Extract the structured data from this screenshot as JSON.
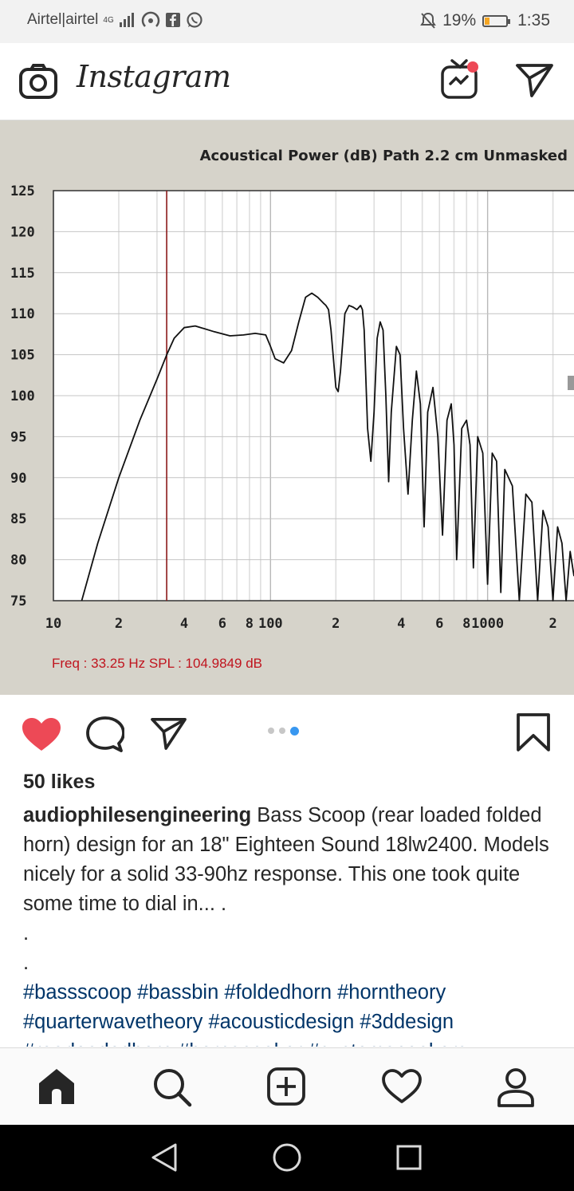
{
  "status": {
    "carrier": "Airtel|airtel",
    "network": "4G",
    "battery": "19%",
    "time": "1:35"
  },
  "header": {
    "app_name": "Instagram"
  },
  "chart_data": {
    "type": "line",
    "title": "Acoustical Power (dB)   Path 2.2 cm   Unmasked",
    "x_scale": "log",
    "xlim": [
      10,
      2500
    ],
    "ylim": [
      75,
      125
    ],
    "yticks": [
      125,
      120,
      115,
      110,
      105,
      100,
      95,
      90,
      85,
      80,
      75
    ],
    "xtick_labels": [
      "10",
      "2",
      "4",
      "6",
      "8",
      "100",
      "2",
      "4",
      "6",
      "8",
      "1000",
      "2"
    ],
    "xtick_values": [
      10,
      20,
      40,
      60,
      80,
      100,
      200,
      400,
      600,
      800,
      1000,
      2000
    ],
    "marker_x": 33.25,
    "readout": "Freq : 33.25 Hz     SPL : 104.9849 dB",
    "grid": true,
    "series": [
      {
        "x": [
          13.5,
          16,
          20,
          25,
          30,
          33.25,
          36,
          40,
          45,
          55,
          65,
          75,
          85,
          95,
          100,
          105,
          115,
          125,
          135,
          145,
          155,
          165,
          175,
          180,
          185,
          190,
          200,
          205,
          210,
          220,
          230,
          240,
          250,
          260,
          265,
          270,
          280,
          290,
          300,
          310,
          320,
          330,
          340,
          350,
          360,
          380,
          395,
          410,
          430,
          450,
          470,
          490,
          510,
          530,
          560,
          590,
          620,
          650,
          680,
          700,
          720,
          760,
          800,
          830,
          860,
          900,
          950,
          1000,
          1050,
          1100,
          1150,
          1200,
          1300,
          1400,
          1500,
          1600,
          1700,
          1800,
          1900,
          2000,
          2100,
          2200,
          2300,
          2400,
          2500
        ],
        "y": [
          75,
          82,
          90,
          97,
          102,
          104.98,
          107,
          108.3,
          108.5,
          107.8,
          107.3,
          107.4,
          107.6,
          107.4,
          106,
          104.5,
          104,
          105.5,
          109,
          112,
          112.5,
          112,
          111.3,
          111,
          110.5,
          108,
          101,
          100.5,
          103,
          110,
          111,
          110.8,
          110.5,
          111,
          110.5,
          108,
          96,
          92,
          98,
          107,
          109,
          108,
          100,
          89.5,
          98,
          106,
          105,
          96,
          88,
          97,
          103,
          99,
          84,
          98,
          101,
          95,
          83,
          97,
          99,
          94,
          80,
          96,
          97,
          94,
          79,
          95,
          93,
          77,
          93,
          92,
          76,
          91,
          89,
          75,
          88,
          87,
          75,
          86,
          84,
          75,
          84,
          82,
          75,
          81,
          78
        ]
      }
    ]
  },
  "post": {
    "likes": "50 likes",
    "username": "audiophilesengineering",
    "caption_text": "Bass Scoop (rear loaded folded horn) design for an 18\" Eighteen Sound 18lw2400. Models nicely for a solid 33-90hz response. This one took quite some time to dial in... .",
    "dot1": ".",
    "dot2": ".",
    "hashtags": "#bassscoop #bassbin #foldedhorn #horntheory #quarterwavetheory #acousticdesign #3ddesign #rearloadedhorn #hornspeaker #customspeakers"
  },
  "icons": {
    "camera": "camera-icon",
    "igtv": "igtv-icon",
    "direct": "direct-message-icon",
    "like": "heart-filled-icon",
    "comment": "comment-icon",
    "share": "share-icon",
    "save": "bookmark-icon",
    "home": "home-icon",
    "search": "search-icon",
    "new_post": "add-post-icon",
    "activity": "heart-outline-icon",
    "profile": "profile-icon"
  },
  "colors": {
    "like_red": "#ed4956",
    "link_blue": "#003569",
    "dot_active": "#3897f0",
    "marker_red": "#8b1a1a",
    "readout_red": "#c0141e"
  }
}
